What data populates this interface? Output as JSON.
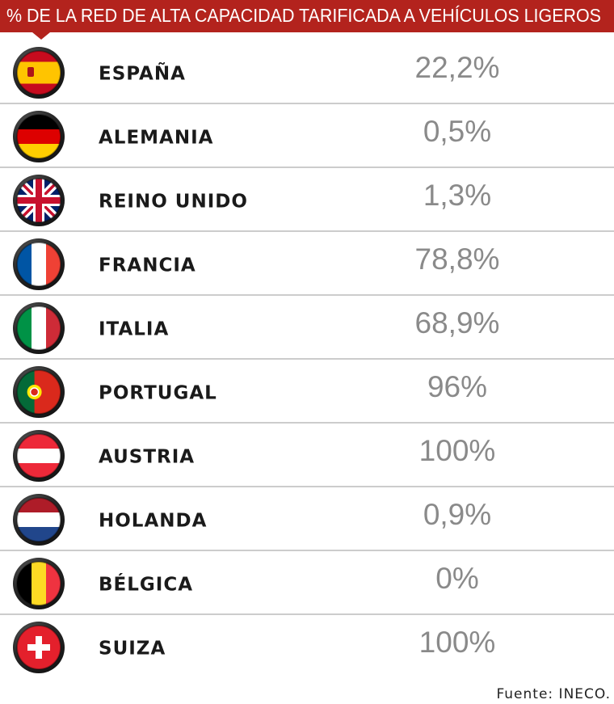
{
  "header": {
    "title": "% DE LA RED DE ALTA CAPACIDAD TARIFICADA A VEHÍCULOS LIGEROS"
  },
  "table": {
    "rows": [
      [
        "ESPAÑA",
        "22,2%"
      ],
      [
        "ALEMANIA",
        "0,5%"
      ],
      [
        "REINO UNIDO",
        "1,3%"
      ],
      [
        "FRANCIA",
        "78,8%"
      ],
      [
        "ITALIA",
        "68,9%"
      ],
      [
        "PORTUGAL",
        "96%"
      ],
      [
        "AUSTRIA",
        "100%"
      ],
      [
        "HOLANDA",
        "0,9%"
      ],
      [
        "BÉLGICA",
        "0%"
      ],
      [
        "SUIZA",
        "100%"
      ]
    ]
  },
  "source": "Fuente: INECO."
}
